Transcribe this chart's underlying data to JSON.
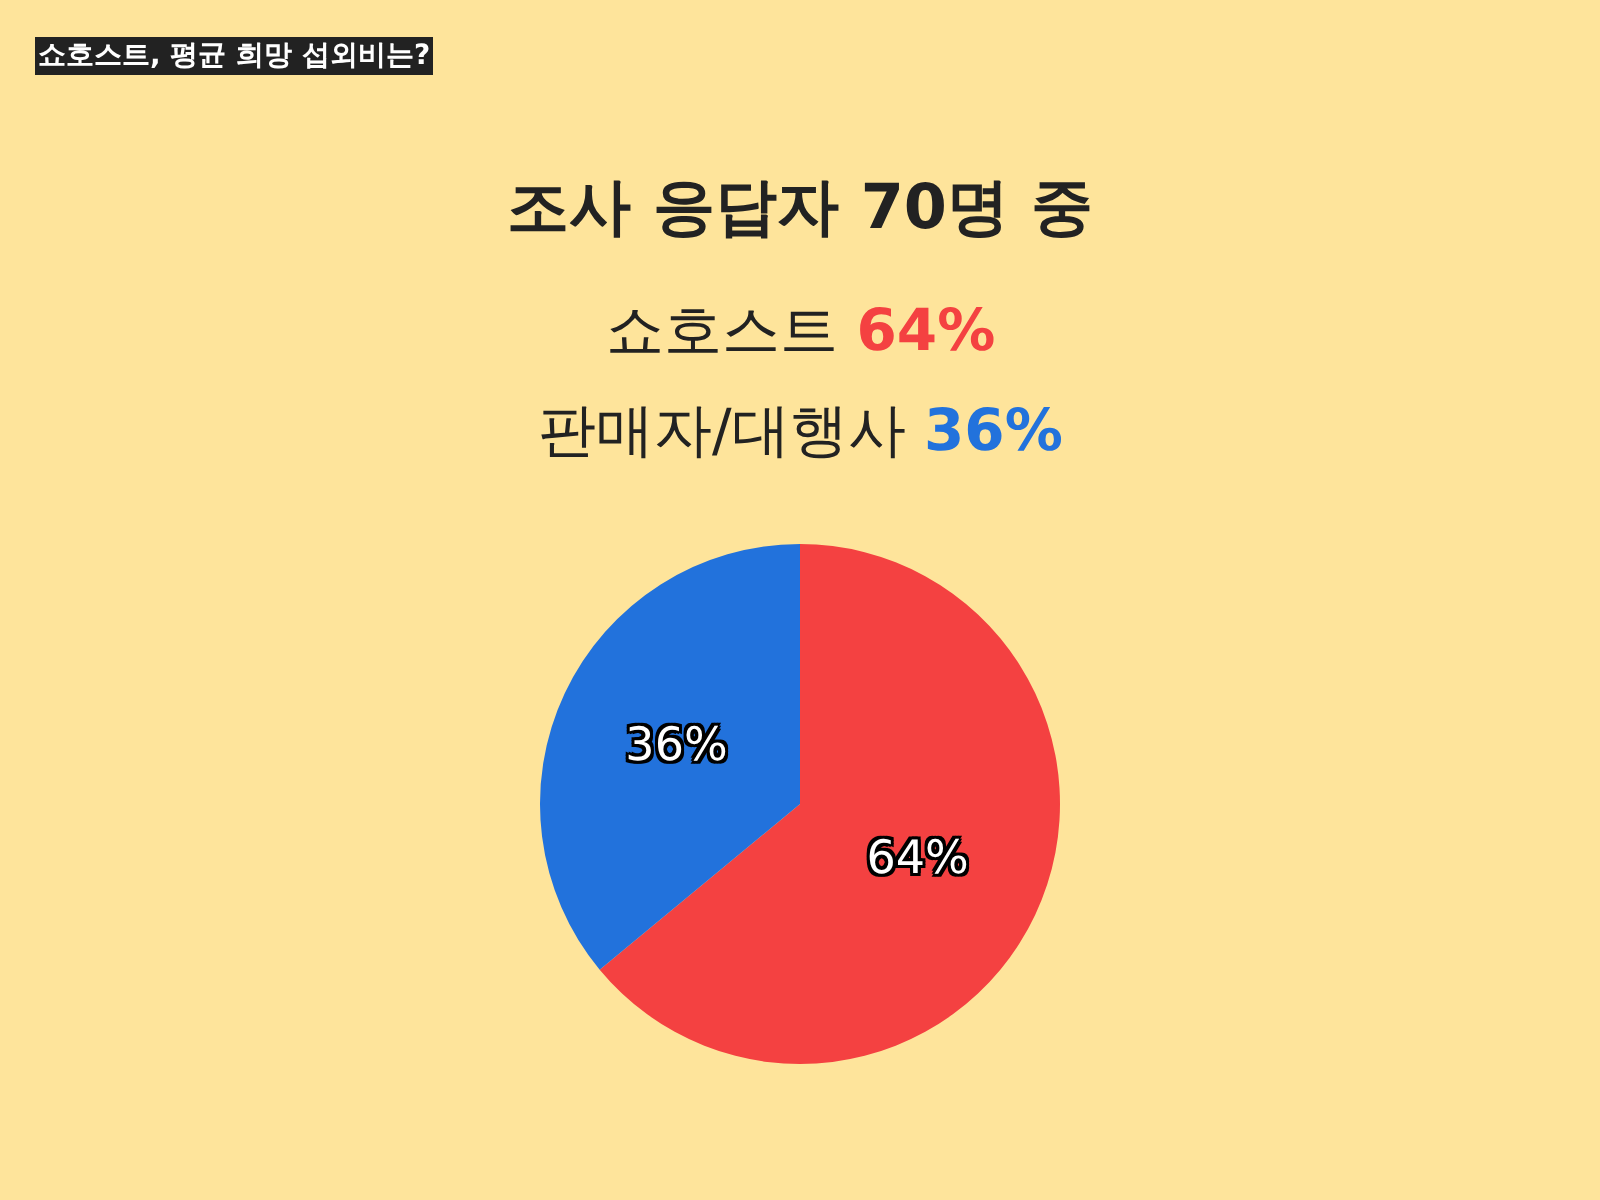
{
  "chart_data": {
    "type": "pie",
    "title": "조사 응답자 70명 중",
    "annotations": [
      "쇼호스트, 평균 희망 섭외비는?"
    ],
    "categories": [
      "쇼호스트",
      "판매자/대행사"
    ],
    "values": [
      64,
      36
    ],
    "colors": [
      "#f44141",
      "#2272dc"
    ],
    "value_labels": [
      "64%",
      "36%"
    ]
  }
}
